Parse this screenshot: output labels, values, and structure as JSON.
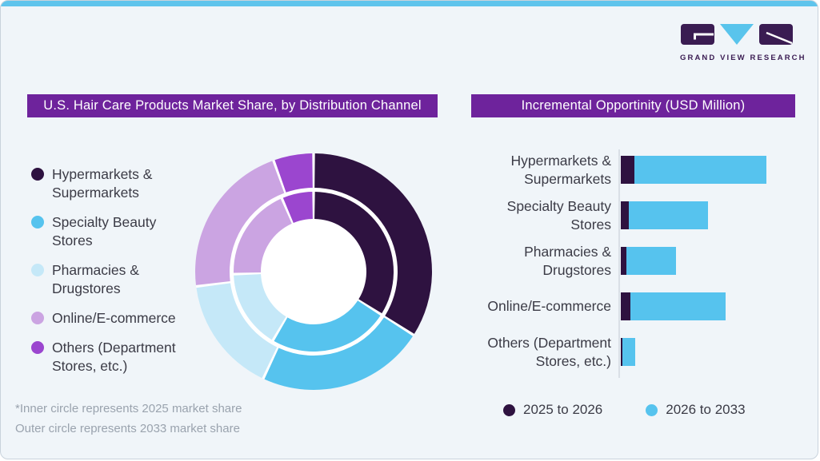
{
  "brand": {
    "name": "GRAND VIEW RESEARCH"
  },
  "colors": {
    "card_bg": "#F0F5F9",
    "card_border": "#C9D3DC",
    "top_strip": "#5FC4EC",
    "header_bg": "#6E239C",
    "header_text": "#FFFFFF",
    "body_text": "#3B3B46",
    "muted_text": "#9AA3AE",
    "axis_line": "#D9DFE6",
    "logo_dark": "#3A1C52",
    "logo_blue": "#59C4EC"
  },
  "left_panel": {
    "header": "U.S. Hair Care Products Market Share, by Distribution Channel",
    "legend": [
      {
        "label": "Hypermarkets & Supermarkets",
        "color": "#2E1240"
      },
      {
        "label": "Specialty Beauty Stores",
        "color": "#56C3EE"
      },
      {
        "label": "Pharmacies & Drugstores",
        "color": "#C5E8F8"
      },
      {
        "label": "Online/E-commerce",
        "color": "#CBA4E2"
      },
      {
        "label": "Others (Department Stores, etc.)",
        "color": "#9B46CF"
      }
    ],
    "footnote1": "*Inner circle represents 2025 market share",
    "footnote2": "Outer circle represents 2033 market share"
  },
  "right_panel": {
    "header": "Incremental Opportinity (USD Million)",
    "legend": [
      {
        "label": "2025 to 2026",
        "color": "#2E1240"
      },
      {
        "label": "2026 to 2033",
        "color": "#56C3EE"
      }
    ]
  },
  "chart_data": [
    {
      "type": "pie",
      "subtype": "double-donut",
      "title": "U.S. Hair Care Products Market Share, by Distribution Channel",
      "categories": [
        "Hypermarkets & Supermarkets",
        "Specialty Beauty Stores",
        "Pharmacies & Drugstores",
        "Online/E-commerce",
        "Others (Department Stores, etc.)"
      ],
      "series": [
        {
          "name": "2025 market share (inner circle)",
          "values": [
            34,
            24.5,
            16,
            19,
            6.5
          ]
        },
        {
          "name": "2033 market share (outer circle)",
          "values": [
            34,
            23,
            16,
            21.5,
            5.5
          ]
        }
      ],
      "unit": "percent, estimated from arc angles (no numeric labels shown)",
      "start": "12 o'clock, clockwise",
      "legend_position": "left"
    },
    {
      "type": "bar",
      "orientation": "horizontal",
      "stacked": true,
      "title": "Incremental Opportinity (USD Million)",
      "categories": [
        "Hypermarkets & Supermarkets",
        "Specialty Beauty Stores",
        "Pharmacies & Drugstores",
        "Online/E-commerce",
        "Others (Department Stores, etc.)"
      ],
      "series": [
        {
          "name": "2025 to 2026",
          "values": [
            9.5,
            5.5,
            4,
            6.5,
            1
          ]
        },
        {
          "name": "2026 to 2033",
          "values": [
            90.5,
            54.5,
            34,
            65.5,
            9
          ]
        }
      ],
      "value_axis": {
        "range": [
          0,
          100
        ],
        "note": "axis unlabeled; values are relative units, longest total bar = 100"
      },
      "legend_position": "bottom"
    }
  ]
}
